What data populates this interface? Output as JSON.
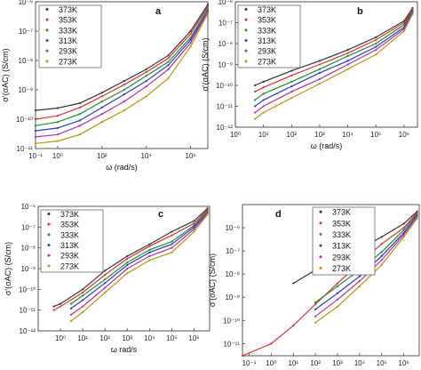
{
  "chart_data": [
    {
      "type": "line",
      "panel_label": "a",
      "xlabel": "ω (rad/s)",
      "ylabel": "σ'(σAC) (S/cm)",
      "x_log": true,
      "y_log": true,
      "xlim": [
        0.1,
        6000000
      ],
      "ylim": [
        1e-11,
        1e-06
      ],
      "x_ticks": [
        {
          "v": 0.1,
          "label": "10⁻¹"
        },
        {
          "v": 1,
          "label": "10⁰"
        },
        {
          "v": 100,
          "label": "10²"
        },
        {
          "v": 10000,
          "label": "10⁴"
        },
        {
          "v": 1000000,
          "label": "10⁶"
        }
      ],
      "y_ticks": [
        {
          "v": 1e-11,
          "label": "10⁻¹¹"
        },
        {
          "v": 1e-10,
          "label": "10⁻¹⁰"
        },
        {
          "v": 1e-09,
          "label": "10⁻⁹"
        },
        {
          "v": 1e-08,
          "label": "10⁻⁸"
        },
        {
          "v": 1e-07,
          "label": "10⁻⁷"
        },
        {
          "v": 1e-06,
          "label": "10⁻⁶"
        }
      ],
      "legend_position": "top-left",
      "series": [
        {
          "name": "373K",
          "color": "#333333",
          "x": [
            0.1,
            1,
            10,
            100,
            1000,
            10000,
            100000,
            1000000,
            6000000
          ],
          "y": [
            2e-10,
            2.4e-10,
            3.5e-10,
            8e-10,
            2e-09,
            5e-09,
            1.5e-08,
            1e-07,
            8e-07
          ]
        },
        {
          "name": "353K",
          "color": "#e03030",
          "x": [
            0.1,
            1,
            10,
            100,
            1000,
            10000,
            100000,
            1000000,
            6000000
          ],
          "y": [
            1e-10,
            1.3e-10,
            2.5e-10,
            6e-10,
            1.5e-09,
            4e-09,
            1.2e-08,
            8e-08,
            7e-07
          ]
        },
        {
          "name": "333K",
          "color": "#2a8a2a",
          "x": [
            0.1,
            1,
            10,
            100,
            1000,
            10000,
            100000,
            1000000,
            6000000
          ],
          "y": [
            6e-11,
            8e-11,
            1.5e-10,
            4e-10,
            1e-09,
            3e-09,
            9e-09,
            6e-08,
            6e-07
          ]
        },
        {
          "name": "313K",
          "color": "#2040c0",
          "x": [
            0.1,
            1,
            10,
            100,
            1000,
            10000,
            100000,
            1000000,
            6000000
          ],
          "y": [
            4e-11,
            5e-11,
            9e-11,
            2.5e-10,
            7e-10,
            2e-09,
            7e-09,
            5e-08,
            5e-07
          ]
        },
        {
          "name": "293K",
          "color": "#b030b0",
          "x": [
            0.1,
            1,
            10,
            100,
            1000,
            10000,
            100000,
            1000000,
            6000000
          ],
          "y": [
            2.5e-11,
            3e-11,
            6e-11,
            1.5e-10,
            4e-10,
            1.3e-09,
            5e-09,
            4e-08,
            4.5e-07
          ]
        },
        {
          "name": "273K",
          "color": "#c09010",
          "x": [
            0.1,
            1,
            10,
            100,
            1000,
            10000,
            100000,
            1000000,
            6000000
          ],
          "y": [
            1.5e-11,
            1.8e-11,
            3e-11,
            8e-11,
            2e-10,
            6e-10,
            2.5e-09,
            3e-08,
            4e-07
          ]
        }
      ]
    },
    {
      "type": "line",
      "panel_label": "b",
      "xlabel": "ω (rad/s)",
      "ylabel": "σ'(σAC) (S/cm)",
      "x_log": true,
      "y_log": true,
      "xlim": [
        1,
        3000000
      ],
      "ylim": [
        1e-12,
        1e-06
      ],
      "x_ticks": [
        {
          "v": 1,
          "label": "10⁰"
        },
        {
          "v": 10,
          "label": "10¹"
        },
        {
          "v": 100,
          "label": "10²"
        },
        {
          "v": 1000,
          "label": "10³"
        },
        {
          "v": 10000,
          "label": "10⁴"
        },
        {
          "v": 100000,
          "label": "10⁵"
        },
        {
          "v": 1000000,
          "label": "10⁶"
        }
      ],
      "y_ticks": [
        {
          "v": 1e-12,
          "label": "10⁻¹²"
        },
        {
          "v": 1e-11,
          "label": "10⁻¹¹"
        },
        {
          "v": 1e-10,
          "label": "10⁻¹⁰"
        },
        {
          "v": 1e-09,
          "label": "10⁻⁹"
        },
        {
          "v": 1e-08,
          "label": "10⁻⁸"
        },
        {
          "v": 1e-07,
          "label": "10⁻⁷"
        },
        {
          "v": 1e-06,
          "label": "10⁻⁶"
        }
      ],
      "legend_position": "top-left",
      "series": [
        {
          "name": "373K",
          "color": "#333333",
          "x": [
            5,
            10,
            100,
            1000,
            10000,
            100000,
            1000000,
            2000000
          ],
          "y": [
            1e-10,
            1.5e-10,
            5e-10,
            1.5e-09,
            5e-09,
            2e-08,
            1.2e-07,
            5e-07
          ]
        },
        {
          "name": "353K",
          "color": "#e03030",
          "x": [
            5,
            10,
            100,
            1000,
            10000,
            100000,
            1000000,
            2000000
          ],
          "y": [
            5e-11,
            8e-11,
            3e-10,
            1e-09,
            3.5e-09,
            1.5e-08,
            1e-07,
            4.5e-07
          ]
        },
        {
          "name": "333K",
          "color": "#2a8a2a",
          "x": [
            5,
            10,
            100,
            1000,
            10000,
            100000,
            1000000,
            2000000
          ],
          "y": [
            2e-11,
            4e-11,
            1.5e-10,
            6e-10,
            2.5e-09,
            1e-08,
            8e-08,
            4e-07
          ]
        },
        {
          "name": "313K",
          "color": "#2040c0",
          "x": [
            5,
            10,
            100,
            1000,
            10000,
            100000,
            1000000,
            2000000
          ],
          "y": [
            1e-11,
            2e-11,
            9e-11,
            4e-10,
            1.5e-09,
            7e-09,
            6e-08,
            3.5e-07
          ]
        },
        {
          "name": "293K",
          "color": "#b030b0",
          "x": [
            5,
            10,
            100,
            1000,
            10000,
            100000,
            1000000,
            2000000
          ],
          "y": [
            5e-12,
            1e-11,
            5e-11,
            2e-10,
            1e-09,
            5e-09,
            5e-08,
            3e-07
          ]
        },
        {
          "name": "273K",
          "color": "#c09010",
          "x": [
            5,
            10,
            100,
            1000,
            10000,
            100000,
            1000000,
            2000000
          ],
          "y": [
            2.5e-12,
            5e-12,
            2.5e-11,
            1.2e-10,
            6e-10,
            3e-09,
            4e-08,
            2.5e-07
          ]
        }
      ]
    },
    {
      "type": "line",
      "panel_label": "c",
      "xlabel": "ω rad/s",
      "ylabel": "σ'(σAC) (S/cm)",
      "x_log": true,
      "y_log": true,
      "xlim": [
        0.1,
        5000000
      ],
      "ylim": [
        1e-12,
        1e-06
      ],
      "x_ticks": [
        {
          "v": 1,
          "label": "10⁰"
        },
        {
          "v": 10,
          "label": "10¹"
        },
        {
          "v": 100,
          "label": "10²"
        },
        {
          "v": 1000,
          "label": "10³"
        },
        {
          "v": 10000,
          "label": "10⁴"
        },
        {
          "v": 100000,
          "label": "10⁵"
        },
        {
          "v": 1000000,
          "label": "10⁶"
        }
      ],
      "y_ticks": [
        {
          "v": 1e-12,
          "label": "10⁻¹²"
        },
        {
          "v": 1e-11,
          "label": "10⁻¹¹"
        },
        {
          "v": 1e-10,
          "label": "10⁻¹⁰"
        },
        {
          "v": 1e-09,
          "label": "10⁻⁹"
        },
        {
          "v": 1e-08,
          "label": "10⁻⁸"
        },
        {
          "v": 1e-07,
          "label": "10⁻⁷"
        },
        {
          "v": 1e-06,
          "label": "10⁻⁶"
        }
      ],
      "legend_position": "top-left",
      "series": [
        {
          "name": "373K",
          "color": "#333333",
          "x": [
            0.5,
            1,
            10,
            100,
            1000,
            10000,
            100000,
            1000000,
            4000000
          ],
          "y": [
            1.5e-11,
            2e-11,
            1e-10,
            8e-10,
            4e-09,
            1.5e-08,
            6e-08,
            2e-07,
            8e-07
          ]
        },
        {
          "name": "353K",
          "color": "#e03030",
          "x": [
            0.5,
            1,
            10,
            100,
            1000,
            10000,
            100000,
            1000000,
            4000000
          ],
          "y": [
            1e-11,
            1.5e-11,
            7e-11,
            5e-10,
            3e-09,
            1.2e-08,
            4e-08,
            1.5e-07,
            7e-07
          ]
        },
        {
          "name": "333K",
          "color": "#2a8a2a",
          "x": [
            3,
            10,
            100,
            1000,
            10000,
            100000,
            1000000,
            4000000
          ],
          "y": [
            2e-11,
            5e-11,
            3e-10,
            2e-09,
            8e-09,
            2e-08,
            1.2e-07,
            6e-07
          ]
        },
        {
          "name": "313K",
          "color": "#2040c0",
          "x": [
            3,
            10,
            100,
            1000,
            10000,
            100000,
            1000000,
            4000000
          ],
          "y": [
            1.2e-11,
            3e-11,
            2e-10,
            1.5e-09,
            6e-09,
            1.5e-08,
            1e-07,
            5e-07
          ]
        },
        {
          "name": "293K",
          "color": "#b030b0",
          "x": [
            3,
            10,
            100,
            1000,
            10000,
            100000,
            1000000,
            4000000
          ],
          "y": [
            6e-12,
            1.5e-11,
            1.2e-10,
            1e-09,
            4e-09,
            1e-08,
            8e-08,
            4.5e-07
          ]
        },
        {
          "name": "273K",
          "color": "#c09010",
          "x": [
            3,
            10,
            100,
            1000,
            10000,
            100000,
            1000000,
            4000000
          ],
          "y": [
            3e-12,
            8e-12,
            7e-11,
            6e-10,
            2.5e-09,
            6e-09,
            6e-08,
            4e-07
          ]
        }
      ]
    },
    {
      "type": "line",
      "panel_label": "d",
      "xlabel": "ω (rad/s)",
      "ylabel": "σ'(σAC) (S/cm)",
      "x_log": true,
      "y_log": true,
      "xlim": [
        0.05,
        5000000
      ],
      "ylim": [
        3e-12,
        1e-05
      ],
      "x_ticks": [
        {
          "v": 0.1,
          "label": "10⁻¹"
        },
        {
          "v": 1,
          "label": "10⁰"
        },
        {
          "v": 10,
          "label": "10¹"
        },
        {
          "v": 100,
          "label": "10²"
        },
        {
          "v": 1000,
          "label": "10³"
        },
        {
          "v": 10000,
          "label": "10⁴"
        },
        {
          "v": 100000,
          "label": "10⁵"
        },
        {
          "v": 1000000,
          "label": "10⁶"
        }
      ],
      "y_ticks": [
        {
          "v": 1e-11,
          "label": "10⁻¹¹"
        },
        {
          "v": 1e-10,
          "label": "10⁻¹⁰"
        },
        {
          "v": 1e-09,
          "label": "10⁻⁹"
        },
        {
          "v": 1e-08,
          "label": "10⁻⁸"
        },
        {
          "v": 1e-07,
          "label": "10⁻⁷"
        },
        {
          "v": 1e-06,
          "label": "10⁻⁶"
        }
      ],
      "legend_position": "top-right",
      "series": [
        {
          "name": "373K",
          "color": "#333333",
          "x": [
            10,
            100,
            1000,
            10000,
            100000,
            1000000,
            4000000
          ],
          "y": [
            4e-09,
            1.5e-08,
            4e-08,
            1.2e-07,
            4e-07,
            1.5e-06,
            5e-06
          ]
        },
        {
          "name": "353K",
          "color": "#e03030",
          "x": [
            0.05,
            1,
            10,
            100,
            1000,
            10000,
            100000,
            1000000,
            4000000
          ],
          "y": [
            3e-12,
            1e-11,
            6e-11,
            5e-10,
            4e-09,
            3e-08,
            2e-07,
            1e-06,
            4.5e-06
          ]
        },
        {
          "name": "333K",
          "color": "#2a8a2a",
          "x": [
            100,
            1000,
            10000,
            100000,
            1000000,
            4000000
          ],
          "y": [
            6e-10,
            3e-09,
            1.5e-08,
            9e-08,
            8e-07,
            4e-06
          ]
        },
        {
          "name": "313K",
          "color": "#2040c0",
          "x": [
            100,
            1000,
            10000,
            100000,
            1000000,
            4000000
          ],
          "y": [
            3e-10,
            1.5e-09,
            8e-09,
            6e-08,
            6e-07,
            3.5e-06
          ]
        },
        {
          "name": "293K",
          "color": "#b030b0",
          "x": [
            100,
            1000,
            10000,
            100000,
            1000000,
            4000000
          ],
          "y": [
            1.5e-10,
            8e-10,
            5e-09,
            4e-08,
            5e-07,
            3e-06
          ]
        },
        {
          "name": "273K",
          "color": "#c09010",
          "x": [
            100,
            1000,
            10000,
            100000,
            1000000,
            4000000
          ],
          "y": [
            8e-11,
            4e-10,
            3e-09,
            2.5e-08,
            4e-07,
            2.5e-06
          ]
        }
      ]
    }
  ]
}
